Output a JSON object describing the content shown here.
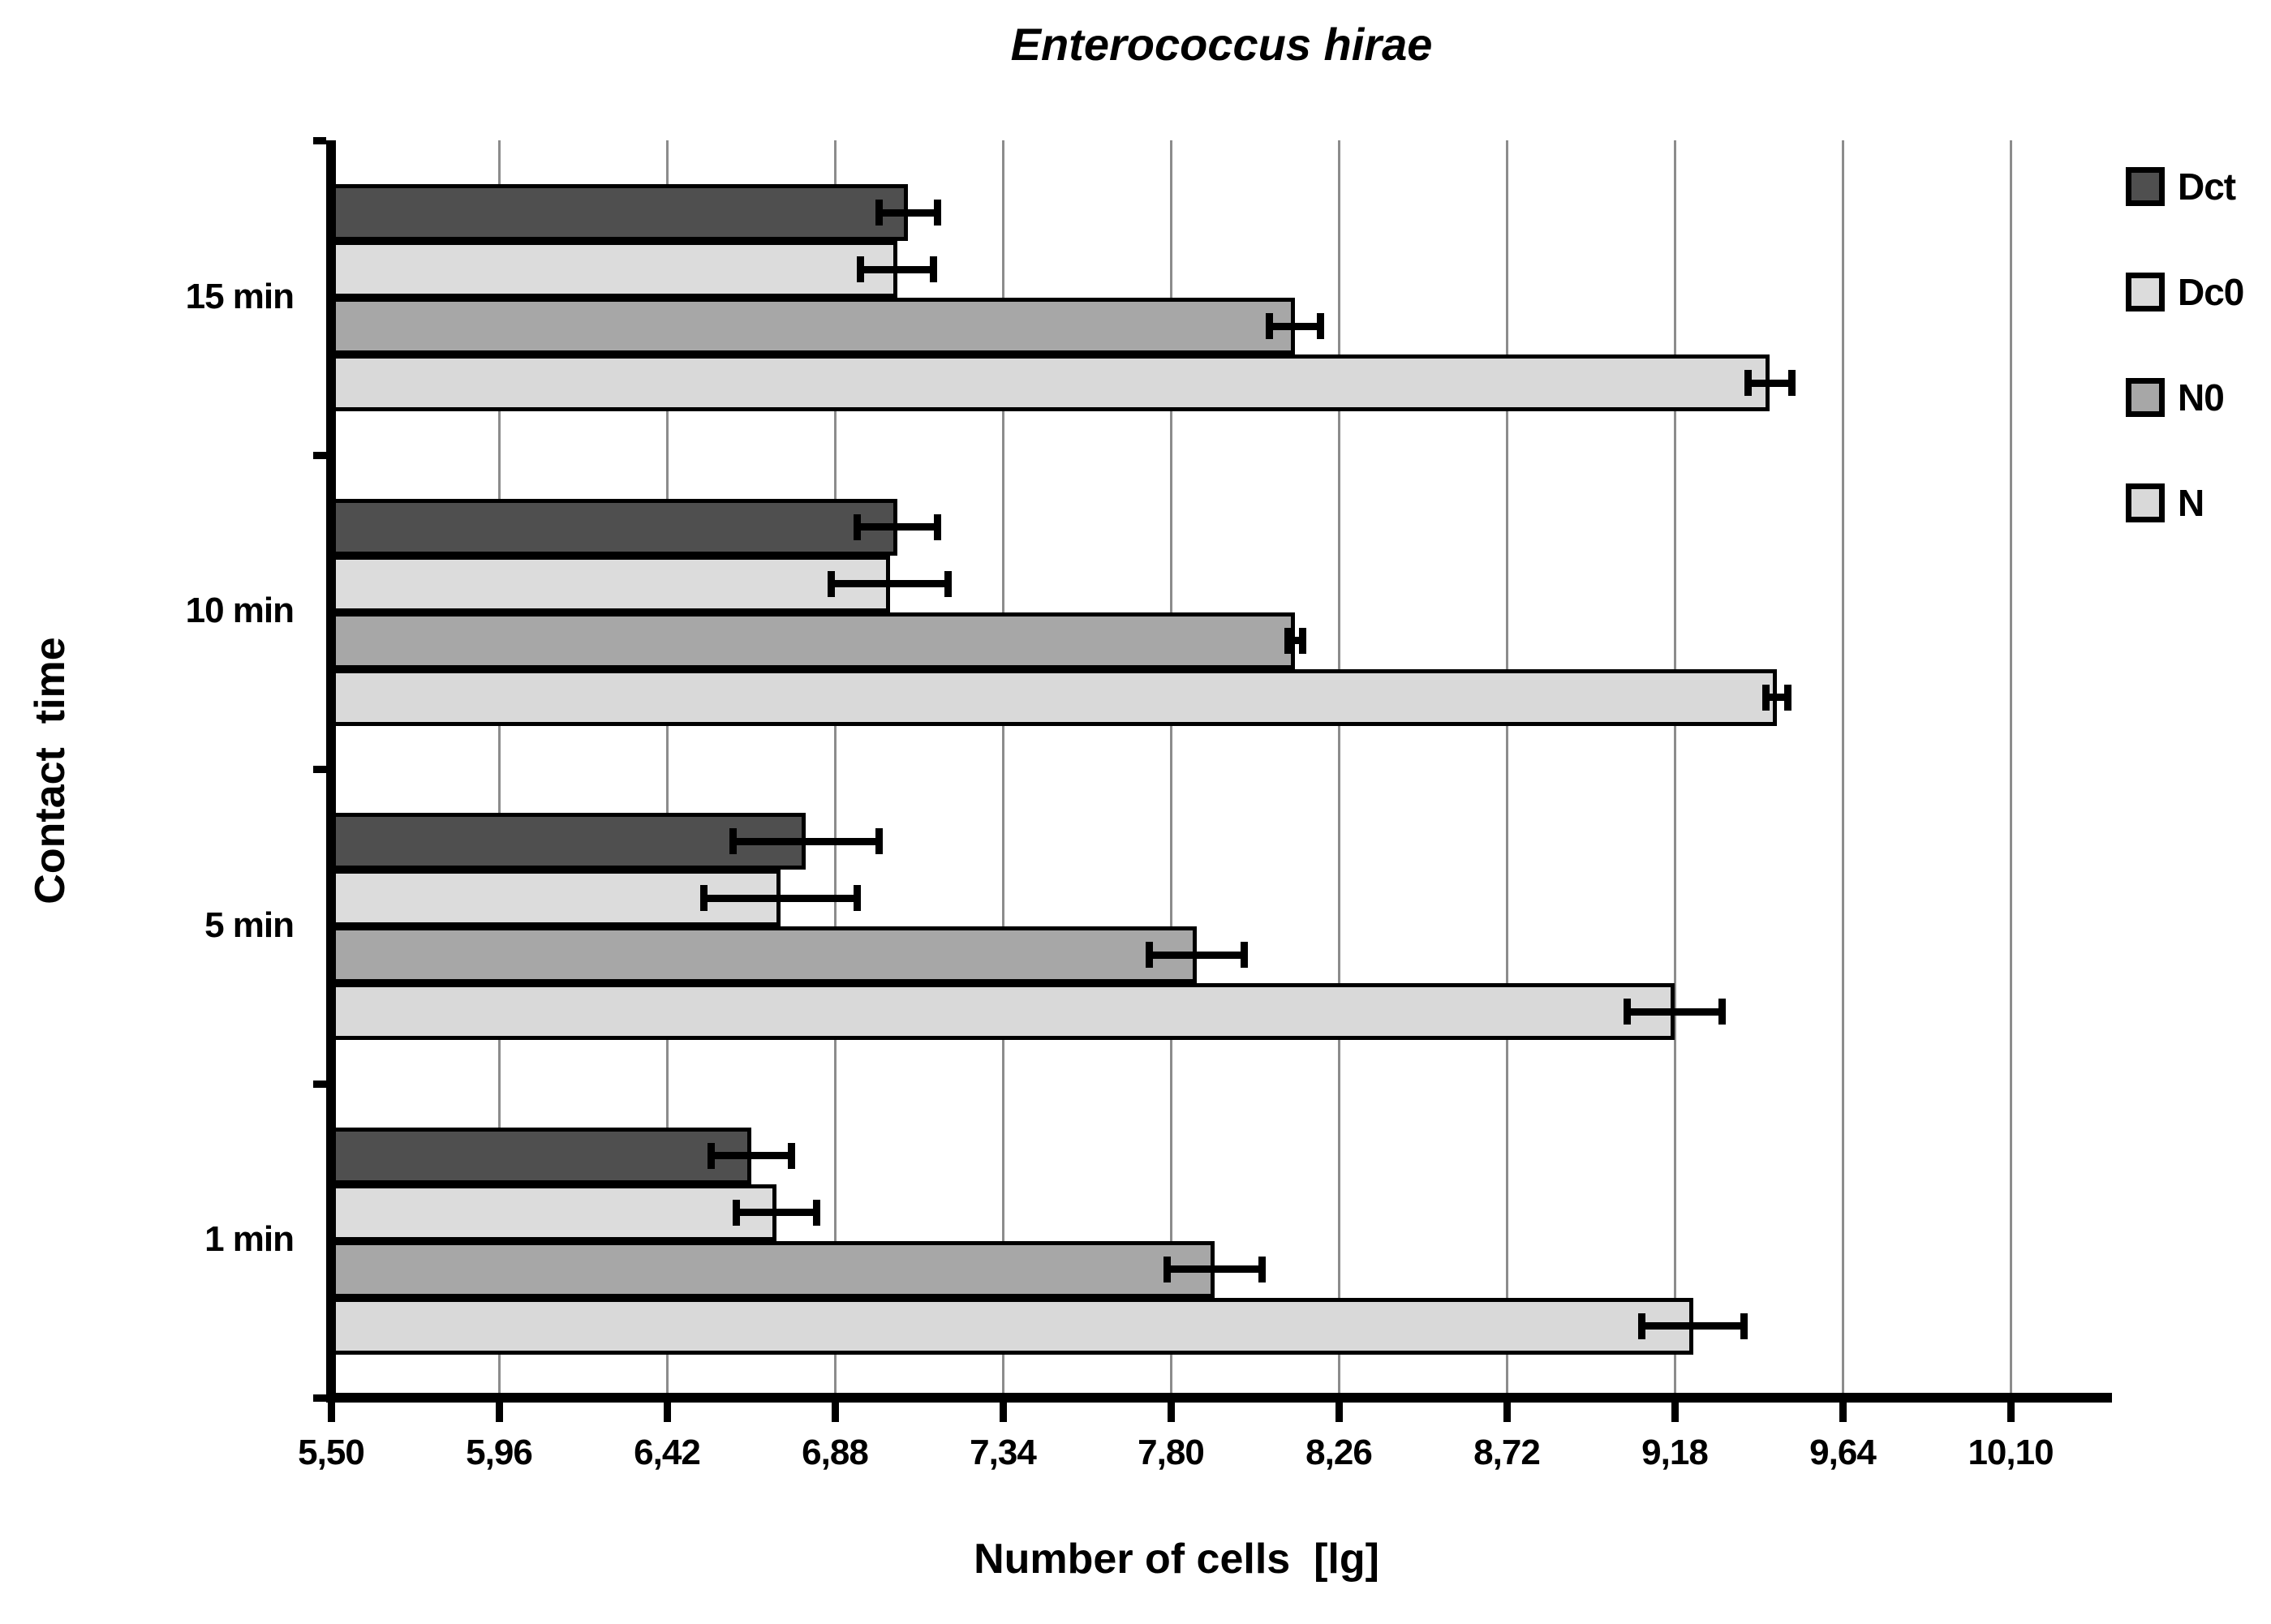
{
  "chart_data": {
    "type": "bar",
    "orientation": "horizontal",
    "title": "Enterococcus hirae",
    "xlabel": "Number of cells  [lg]",
    "ylabel": "Contact  time",
    "xlim": [
      5.5,
      10.1
    ],
    "xtick_step": 0.46,
    "xtick_labels": [
      "5,50",
      "5,96",
      "6,42",
      "6,88",
      "7,34",
      "7,80",
      "8,26",
      "8,72",
      "9,18",
      "9,64",
      "10,10"
    ],
    "categories": [
      "15 min",
      "10 min",
      "5 min",
      "1 min"
    ],
    "series": [
      {
        "name": "Dct",
        "color": "#4f4f4f",
        "values": [
          7.08,
          7.05,
          6.8,
          6.65
        ],
        "errors": [
          0.08,
          0.11,
          0.2,
          0.11
        ]
      },
      {
        "name": "Dc0",
        "color": "#dcdcdc",
        "values": [
          7.05,
          7.03,
          6.73,
          6.72
        ],
        "errors": [
          0.1,
          0.16,
          0.21,
          0.11
        ]
      },
      {
        "name": "N0",
        "color": "#a7a7a7",
        "values": [
          8.14,
          8.14,
          7.87,
          7.92
        ],
        "errors": [
          0.07,
          0.02,
          0.13,
          0.13
        ]
      },
      {
        "name": "N",
        "color": "#d9d9d9",
        "values": [
          9.44,
          9.46,
          9.18,
          9.23
        ],
        "errors": [
          0.06,
          0.03,
          0.13,
          0.14
        ]
      }
    ],
    "error_bars": "symmetric",
    "grid": true,
    "gridline_color": "#8c8c8c",
    "axis_color": "#000000",
    "legend_position": "right"
  }
}
